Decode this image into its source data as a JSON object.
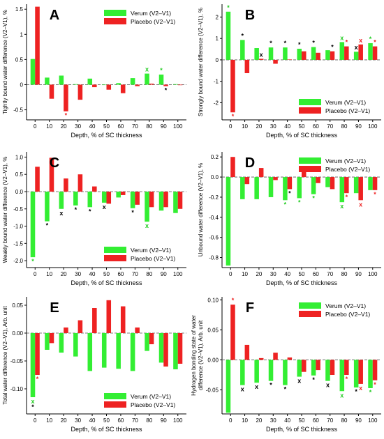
{
  "figure": {
    "colors": {
      "verum": "#33ee33",
      "placebo": "#ee2222",
      "black_mark": "#000000"
    }
  },
  "chart_data": [
    {
      "panel": "A",
      "type": "bar",
      "ylabel": "Tightly bound water difference (V2–V1), %",
      "xlabel": "Depth, % of SC thickness",
      "categories": [
        "0",
        "10",
        "20",
        "30",
        "40",
        "50",
        "60",
        "70",
        "80",
        "90",
        "100"
      ],
      "ylim": [
        -0.7,
        1.6
      ],
      "yticks": [
        -0.5,
        0,
        0.5,
        1,
        1.5
      ],
      "ytick_labels": [
        "-0.5",
        "0",
        "0.5",
        "1",
        "1.5"
      ],
      "legend_position": "top-right",
      "series": [
        {
          "name": "Verum (V2–V1)",
          "values": [
            0.51,
            0.14,
            0.18,
            0.01,
            0.12,
            0.0,
            0.03,
            0.13,
            0.22,
            0.2,
            0.01
          ]
        },
        {
          "name": "Placebo (V2–V1)",
          "values": [
            1.55,
            -0.28,
            -0.53,
            -0.3,
            -0.05,
            -0.1,
            -0.17,
            -0.03,
            0.02,
            -0.03,
            -0.01
          ]
        }
      ],
      "marks": [
        {
          "i": 2,
          "s": 1,
          "sym": "*",
          "color": "#ee2222"
        },
        {
          "i": 8,
          "s": 0,
          "sym": "x",
          "color": "#22cc22"
        },
        {
          "i": 9,
          "s": 0,
          "sym": "*",
          "color": "#22cc22"
        },
        {
          "i": 9,
          "s": 1,
          "sym": "*",
          "color": "#000000"
        }
      ]
    },
    {
      "panel": "B",
      "type": "bar",
      "ylabel": "Strongly bound water difference (V2–V1), %",
      "xlabel": "Depth, % of SC thickness",
      "categories": [
        "0",
        "10",
        "20",
        "30",
        "40",
        "50",
        "60",
        "70",
        "80",
        "90",
        "100"
      ],
      "ylim": [
        -2.8,
        2.6
      ],
      "yticks": [
        -2,
        -1,
        0,
        1,
        2
      ],
      "ytick_labels": [
        "-2",
        "-1",
        "0",
        "1",
        "2"
      ],
      "legend_position": "bottom-right",
      "series": [
        {
          "name": "Verum (V2–V1)",
          "values": [
            2.25,
            0.93,
            0.55,
            0.58,
            0.58,
            0.52,
            0.6,
            0.45,
            0.83,
            0.38,
            0.78
          ]
        },
        {
          "name": "Placebo (V2–V1)",
          "values": [
            -2.45,
            -0.62,
            0.05,
            -0.18,
            0.02,
            0.4,
            0.33,
            0.4,
            0.63,
            0.72,
            0.63
          ]
        }
      ],
      "marks": [
        {
          "i": 0,
          "s": 0,
          "sym": "*",
          "color": "#22cc22"
        },
        {
          "i": 0,
          "s": 1,
          "sym": "*",
          "color": "#ee2222"
        },
        {
          "i": 1,
          "s": 0,
          "sym": "*",
          "color": "#000000"
        },
        {
          "i": 2,
          "s": 1,
          "sym": "x",
          "color": "#000000"
        },
        {
          "i": 3,
          "s": 0,
          "sym": "*",
          "color": "#000000"
        },
        {
          "i": 4,
          "s": 0,
          "sym": "*",
          "color": "#000000"
        },
        {
          "i": 5,
          "s": 0,
          "sym": "*",
          "color": "#000000"
        },
        {
          "i": 6,
          "s": 0,
          "sym": "*",
          "color": "#000000"
        },
        {
          "i": 7,
          "s": 1,
          "sym": "*",
          "color": "#000000"
        },
        {
          "i": 8,
          "s": 0,
          "sym": "x",
          "color": "#22cc22"
        },
        {
          "i": 8,
          "s": 1,
          "sym": "*",
          "color": "#ee2222"
        },
        {
          "i": 9,
          "s": 0,
          "sym": "x",
          "color": "#000000"
        },
        {
          "i": 9,
          "s": 1,
          "sym": "x",
          "color": "#ee2222"
        },
        {
          "i": 10,
          "s": 0,
          "sym": "*",
          "color": "#22cc22"
        },
        {
          "i": 10,
          "s": 1,
          "sym": "*",
          "color": "#ee2222"
        }
      ]
    },
    {
      "panel": "C",
      "type": "bar",
      "ylabel": "Weakly bound water difference (V2–V1), %",
      "xlabel": "Depth, % of SC thickness",
      "categories": [
        "0",
        "10",
        "20",
        "30",
        "40",
        "50",
        "60",
        "70",
        "80",
        "90",
        "100"
      ],
      "ylim": [
        -2.2,
        1.15
      ],
      "yticks": [
        -2,
        -1.5,
        -1,
        -0.5,
        0,
        0.5,
        1
      ],
      "ytick_labels": [
        "-2.0",
        "-1.5",
        "-1.0",
        "-0.5",
        "0.0",
        "0.5",
        "1.0"
      ],
      "legend_position": "bottom-right",
      "series": [
        {
          "name": "Verum (V2–V1)",
          "values": [
            -1.9,
            -0.86,
            -0.5,
            -0.4,
            -0.45,
            -0.32,
            -0.17,
            -0.48,
            -0.87,
            -0.55,
            -0.62
          ]
        },
        {
          "name": "Placebo (V2–V1)",
          "values": [
            0.72,
            0.98,
            0.38,
            0.5,
            0.15,
            -0.35,
            -0.1,
            -0.38,
            -0.45,
            -0.45,
            -0.5
          ]
        }
      ],
      "marks": [
        {
          "i": 0,
          "s": 0,
          "sym": "*",
          "color": "#22cc22"
        },
        {
          "i": 1,
          "s": 0,
          "sym": "*",
          "color": "#000000"
        },
        {
          "i": 2,
          "s": 0,
          "sym": "x",
          "color": "#000000"
        },
        {
          "i": 3,
          "s": 0,
          "sym": "*",
          "color": "#000000"
        },
        {
          "i": 4,
          "s": 0,
          "sym": "*",
          "color": "#000000"
        },
        {
          "i": 5,
          "s": 0,
          "sym": "x",
          "color": "#000000"
        },
        {
          "i": 7,
          "s": 0,
          "sym": "*",
          "color": "#000000"
        },
        {
          "i": 8,
          "s": 0,
          "sym": "x",
          "color": "#22cc22"
        }
      ]
    },
    {
      "panel": "D",
      "type": "bar",
      "ylabel": "Unbound water difference (V2–V1), %",
      "xlabel": "Depth, % of SC thickness",
      "categories": [
        "0",
        "10",
        "20",
        "30",
        "40",
        "50",
        "60",
        "70",
        "80",
        "90",
        "100"
      ],
      "ylim": [
        -0.9,
        0.25
      ],
      "yticks": [
        -0.8,
        -0.6,
        -0.4,
        -0.2,
        0,
        0.2
      ],
      "ytick_labels": [
        "-0.8",
        "-0.6",
        "-0.4",
        "-0.2",
        "0.0",
        "0.2"
      ],
      "legend_position": "top-right",
      "series": [
        {
          "name": "Verum (V2–V1)",
          "values": [
            -0.88,
            -0.22,
            -0.22,
            -0.2,
            -0.23,
            -0.21,
            -0.17,
            -0.1,
            -0.25,
            -0.16,
            -0.13
          ]
        },
        {
          "name": "Placebo (V2–V1)",
          "values": [
            0.2,
            -0.07,
            0.09,
            -0.03,
            -0.12,
            0.07,
            -0.06,
            -0.12,
            -0.16,
            -0.23,
            -0.13
          ]
        }
      ],
      "marks": [
        {
          "i": 4,
          "s": 0,
          "sym": "*",
          "color": "#22cc22"
        },
        {
          "i": 4,
          "s": 1,
          "sym": "*",
          "color": "#000000"
        },
        {
          "i": 5,
          "s": 0,
          "sym": "*",
          "color": "#22cc22"
        },
        {
          "i": 6,
          "s": 0,
          "sym": "*",
          "color": "#22cc22"
        },
        {
          "i": 8,
          "s": 0,
          "sym": "x",
          "color": "#22cc22"
        },
        {
          "i": 8,
          "s": 1,
          "sym": "*",
          "color": "#ee2222"
        },
        {
          "i": 9,
          "s": 1,
          "sym": "x",
          "color": "#ee2222"
        },
        {
          "i": 10,
          "s": 1,
          "sym": "*",
          "color": "#ee2222"
        }
      ]
    },
    {
      "panel": "E",
      "type": "bar",
      "ylabel": "Total water difference (V2–V1), Arb. unit",
      "xlabel": "Depth, % of SC thickness",
      "categories": [
        "0",
        "10",
        "20",
        "30",
        "40",
        "50",
        "60",
        "70",
        "80",
        "90",
        "100"
      ],
      "ylim": [
        -0.145,
        0.065
      ],
      "yticks": [
        -0.1,
        -0.05,
        0,
        0.05
      ],
      "ytick_labels": [
        "-0.10",
        "-0.05",
        "0.00",
        "0.05"
      ],
      "legend_position": "bottom-right",
      "series": [
        {
          "name": "Verum (V2–V1)",
          "values": [
            -0.115,
            -0.03,
            -0.035,
            -0.042,
            -0.068,
            -0.062,
            -0.064,
            -0.068,
            -0.032,
            -0.053,
            -0.065
          ]
        },
        {
          "name": "Placebo (V2–V1)",
          "values": [
            -0.075,
            -0.018,
            0.01,
            0.023,
            0.045,
            0.059,
            0.048,
            0.01,
            -0.02,
            -0.06,
            -0.055
          ]
        }
      ],
      "marks": [
        {
          "i": 0,
          "s": 0,
          "sym": "x",
          "color": "#22cc22"
        },
        {
          "i": 0,
          "s": 0,
          "sym": "*",
          "color": "#000000"
        },
        {
          "i": 0,
          "s": 1,
          "sym": "*",
          "color": "#ee2222"
        }
      ]
    },
    {
      "panel": "F",
      "type": "bar",
      "ylabel": "Hydrogen bonding state of water difference (V2–V1), Arb. unit",
      "xlabel": "Depth, % of SC thickness",
      "categories": [
        "0",
        "10",
        "20",
        "30",
        "40",
        "50",
        "60",
        "70",
        "80",
        "90",
        "100"
      ],
      "ylim": [
        -0.09,
        0.105
      ],
      "yticks": [
        -0.05,
        0,
        0.05,
        0.1
      ],
      "ytick_labels": [
        "-0.05",
        "0.00",
        "0.05",
        "0.10"
      ],
      "legend_position": "top-right",
      "series": [
        {
          "name": "Verum (V2–V1)",
          "values": [
            -0.088,
            -0.042,
            -0.038,
            -0.035,
            -0.042,
            -0.028,
            -0.026,
            -0.035,
            -0.052,
            -0.046,
            -0.047
          ]
        },
        {
          "name": "Placebo (V2–V1)",
          "values": [
            0.092,
            0.025,
            0.003,
            0.012,
            0.004,
            -0.02,
            -0.017,
            -0.025,
            -0.025,
            -0.04,
            -0.034
          ]
        }
      ],
      "marks": [
        {
          "i": 0,
          "s": 1,
          "sym": "*",
          "color": "#ee2222"
        },
        {
          "i": 1,
          "s": 0,
          "sym": "x",
          "color": "#000000"
        },
        {
          "i": 2,
          "s": 0,
          "sym": "x",
          "color": "#000000"
        },
        {
          "i": 3,
          "s": 0,
          "sym": "*",
          "color": "#000000"
        },
        {
          "i": 4,
          "s": 0,
          "sym": "*",
          "color": "#000000"
        },
        {
          "i": 5,
          "s": 0,
          "sym": "x",
          "color": "#000000"
        },
        {
          "i": 6,
          "s": 0,
          "sym": "*",
          "color": "#000000"
        },
        {
          "i": 7,
          "s": 0,
          "sym": "x",
          "color": "#000000"
        },
        {
          "i": 8,
          "s": 0,
          "sym": "x",
          "color": "#22cc22"
        },
        {
          "i": 8,
          "s": 1,
          "sym": "*",
          "color": "#ee2222"
        },
        {
          "i": 9,
          "s": 0,
          "sym": "*",
          "color": "#000000"
        },
        {
          "i": 9,
          "s": 1,
          "sym": "x",
          "color": "#ee2222"
        },
        {
          "i": 10,
          "s": 0,
          "sym": "*",
          "color": "#22cc22"
        },
        {
          "i": 10,
          "s": 1,
          "sym": "*",
          "color": "#ee2222"
        }
      ]
    }
  ]
}
